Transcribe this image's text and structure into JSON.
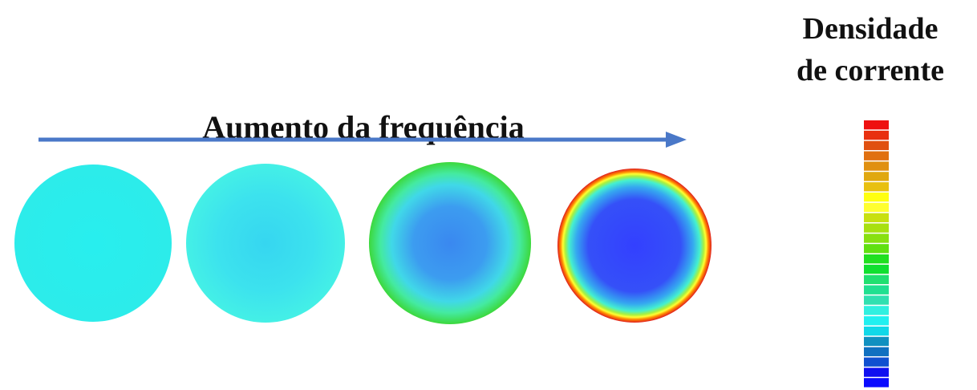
{
  "arrow_label": "Aumento da frequência",
  "legend": {
    "title_lines": [
      "Densidade",
      "de corrente"
    ]
  }
}
